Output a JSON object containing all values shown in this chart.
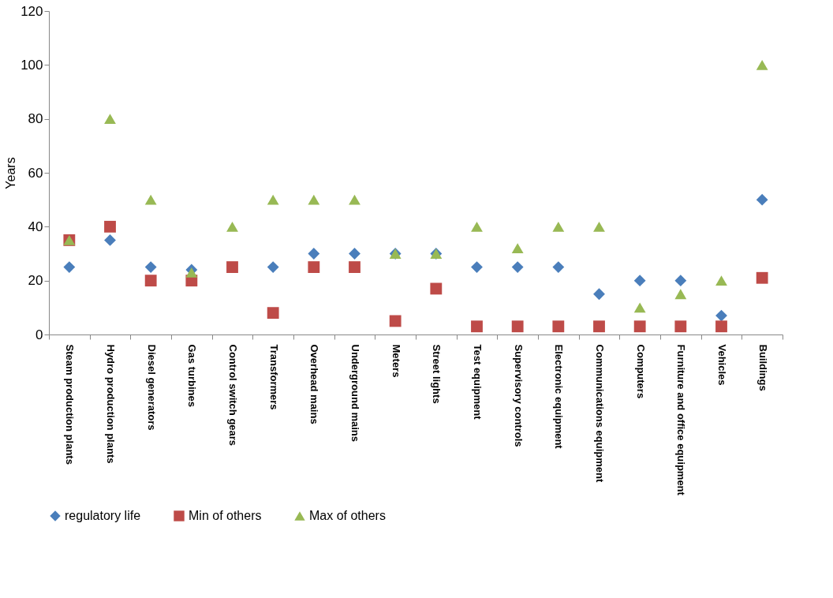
{
  "chart_data": {
    "type": "scatter",
    "ylabel": "Years",
    "ylim": [
      0,
      120
    ],
    "yticks": [
      0,
      20,
      40,
      60,
      80,
      100,
      120
    ],
    "grid": false,
    "legend": "bottom",
    "categories": [
      "Steam production plants",
      "Hydro production plants",
      "Diesel generators",
      "Gas turbines",
      "Control switch gears",
      "Transformers",
      "Overhead mains",
      "Underground mains",
      "Meters",
      "Street lights",
      "Test equipment",
      "Supervisory controls",
      "Electronic equipment",
      "Communications equipment",
      "Computers",
      "Furniture and office equipment",
      "Vehicles",
      "Buildings"
    ],
    "series": [
      {
        "name": "regulatory life",
        "color": "#4a7ebb",
        "marker": "diamond",
        "values": [
          25,
          35,
          25,
          24,
          null,
          25,
          30,
          30,
          30,
          30,
          25,
          25,
          25,
          15,
          20,
          20,
          7,
          50
        ]
      },
      {
        "name": "Min of others",
        "color": "#be4b48",
        "marker": "square",
        "values": [
          35,
          40,
          20,
          20,
          25,
          8,
          25,
          25,
          5,
          17,
          3,
          3,
          3,
          3,
          3,
          3,
          3,
          21
        ]
      },
      {
        "name": "Max of others",
        "color": "#98b954",
        "marker": "triangle",
        "values": [
          35,
          80,
          50,
          23,
          40,
          50,
          50,
          50,
          30,
          30,
          40,
          32,
          40,
          40,
          10,
          15,
          20,
          100
        ]
      }
    ]
  }
}
